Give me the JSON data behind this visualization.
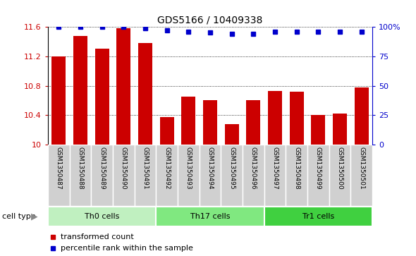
{
  "title": "GDS5166 / 10409338",
  "samples": [
    "GSM1350487",
    "GSM1350488",
    "GSM1350489",
    "GSM1350490",
    "GSM1350491",
    "GSM1350492",
    "GSM1350493",
    "GSM1350494",
    "GSM1350495",
    "GSM1350496",
    "GSM1350497",
    "GSM1350498",
    "GSM1350499",
    "GSM1350500",
    "GSM1350501"
  ],
  "bar_values": [
    11.2,
    11.48,
    11.3,
    11.58,
    11.38,
    10.37,
    10.65,
    10.6,
    10.28,
    10.6,
    10.73,
    10.72,
    10.4,
    10.42,
    10.78
  ],
  "percentile_values": [
    100,
    100,
    100,
    100,
    99,
    97,
    96,
    95,
    94,
    94,
    96,
    96,
    96,
    96,
    96
  ],
  "cell_groups": [
    {
      "label": "Th0 cells",
      "start": 0,
      "end": 5,
      "color": "#c0f0c0"
    },
    {
      "label": "Th17 cells",
      "start": 5,
      "end": 10,
      "color": "#80e880"
    },
    {
      "label": "Tr1 cells",
      "start": 10,
      "end": 15,
      "color": "#40d040"
    }
  ],
  "ylim": [
    10.0,
    11.6
  ],
  "yticks": [
    10.0,
    10.4,
    10.8,
    11.2,
    11.6
  ],
  "ytick_labels": [
    "10",
    "10.4",
    "10.8",
    "11.2",
    "11.6"
  ],
  "right_yticks": [
    0,
    25,
    50,
    75,
    100
  ],
  "right_ytick_labels": [
    "0",
    "25",
    "50",
    "75",
    "100%"
  ],
  "bar_color": "#cc0000",
  "dot_color": "#0000cc",
  "cell_type_label": "cell type",
  "legend_bar_label": "transformed count",
  "legend_dot_label": "percentile rank within the sample",
  "tick_bg_color": "#d0d0d0",
  "tick_line_color": "#ffffff"
}
